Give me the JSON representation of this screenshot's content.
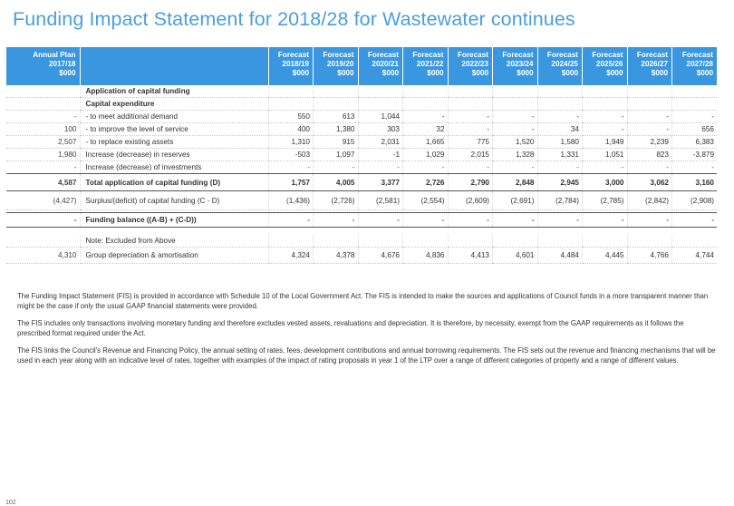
{
  "title": "Funding Impact Statement for 2018/28 for Wastewater continues",
  "table": {
    "headers": [
      "Annual Plan\n2017/18\n$000",
      "",
      "Forecast\n2018/19\n$000",
      "Forecast\n2019/20\n$000",
      "Forecast\n2020/21\n$000",
      "Forecast\n2021/22\n$000",
      "Forecast\n2022/23\n$000",
      "Forecast\n2023/24\n$000",
      "Forecast\n2024/25\n$000",
      "Forecast\n2025/26\n$000",
      "Forecast\n2026/27\n$000",
      "Forecast\n2027/28\n$000"
    ],
    "rows": [
      {
        "plan": "",
        "desc": "Application of capital funding",
        "values": [
          "",
          "",
          "",
          "",
          "",
          "",
          "",
          "",
          "",
          ""
        ]
      },
      {
        "plan": "",
        "desc": "Capital expenditure",
        "values": [
          "",
          "",
          "",
          "",
          "",
          "",
          "",
          "",
          "",
          ""
        ]
      },
      {
        "plan": "-",
        "desc": "- to meet additional demand",
        "values": [
          "550",
          "613",
          "1,044",
          "-",
          "-",
          "-",
          "-",
          "-",
          "-",
          "-"
        ]
      },
      {
        "plan": "100",
        "desc": "- to improve the level of service",
        "values": [
          "400",
          "1,380",
          "303",
          "32",
          "-",
          "-",
          "34",
          "-",
          "-",
          "656"
        ]
      },
      {
        "plan": "2,507",
        "desc": "- to replace existing assets",
        "values": [
          "1,310",
          "915",
          "2,031",
          "1,665",
          "775",
          "1,520",
          "1,580",
          "1,949",
          "2,239",
          "6,383"
        ]
      },
      {
        "plan": "1,980",
        "desc": "Increase (decrease) in reserves",
        "values": [
          "-503",
          "1,097",
          "-1",
          "1,029",
          "2,015",
          "1,328",
          "1,331",
          "1,051",
          "823",
          "-3,879"
        ]
      },
      {
        "plan": "-",
        "desc": "Increase (decrease) of investments",
        "values": [
          "-",
          "-",
          "-",
          "-",
          "-",
          "-",
          "-",
          "-",
          "-",
          "-"
        ]
      }
    ],
    "total": {
      "plan": "4,587",
      "desc": "Total application of capital funding (D)",
      "values": [
        "1,757",
        "4,005",
        "3,377",
        "2,726",
        "2,790",
        "2,848",
        "2,945",
        "3,000",
        "3,062",
        "3,160"
      ]
    },
    "surplus": {
      "plan": "(4,427)",
      "desc": "Surplus/(deficit) of capital funding (C - D)",
      "values": [
        "(1,436)",
        "(2,726)",
        "(2,581)",
        "(2,554)",
        "(2,609)",
        "(2,691)",
        "(2,784)",
        "(2,785)",
        "(2,842)",
        "(2,908)"
      ]
    },
    "balance": {
      "plan": "-",
      "desc": "Funding balance ((A-B) + (C-D))",
      "values": [
        "-",
        "-",
        "-",
        "-",
        "-",
        "-",
        "-",
        "-",
        "-",
        "-"
      ]
    },
    "note": {
      "desc": "Note: Excluded from Above"
    },
    "depreciation": {
      "plan": "4,310",
      "desc": "Group depreciation & amortisation",
      "values": [
        "4,324",
        "4,378",
        "4,676",
        "4,836",
        "4,413",
        "4,601",
        "4,484",
        "4,445",
        "4,766",
        "4,744"
      ]
    }
  },
  "notes": [
    "The Funding Impact Statement (FIS) is provided in accordance with Schedule 10 of the Local Government Act. The FIS is intended to make the sources and applications of Council funds in a more transparent manner than might be the case if only the usual GAAP financial statements were provided.",
    "The FIS includes only transactions involving monetary funding and therefore excludes vested assets, revaluations and depreciation.  It is therefore, by necessity, exempt from the GAAP requirements as it follows the prescribed format required under the Act.",
    "The FIS links the Council's Revenue and Financing Policy, the annual setting of rates, fees, development contributions and annual borrowing requirements.  The FIS sets out the revenue and financing mechanisms that will be used in each year along with an indicative level of rates, together with examples of the impact of rating proposals in year 1 of the LTP over a range of different categories of property and a range of different values."
  ],
  "page_number": "102"
}
